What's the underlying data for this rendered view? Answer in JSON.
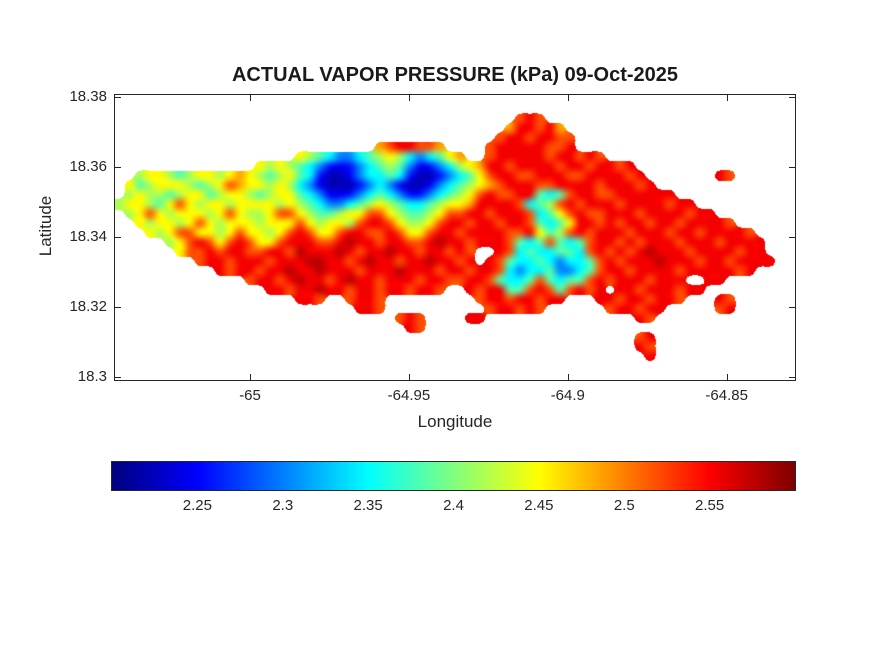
{
  "chart_data": {
    "type": "heatmap",
    "title": "ACTUAL VAPOR PRESSURE (kPa) 09-Oct-2025",
    "xlabel": "Longitude",
    "ylabel": "Latitude",
    "xlim": [
      -65.0425,
      -64.8285
    ],
    "ylim": [
      18.299,
      18.3805
    ],
    "x_tick_values": [
      -65,
      -64.95,
      -64.9,
      -64.85
    ],
    "x_tick_labels": [
      "-65",
      "-64.95",
      "-64.9",
      "-64.85"
    ],
    "y_tick_values": [
      18.3,
      18.32,
      18.34,
      18.36,
      18.38
    ],
    "y_tick_labels": [
      "18.3",
      "18.32",
      "18.34",
      "18.36",
      "18.38"
    ],
    "colormap": "jet",
    "units": "kPa",
    "colorbar": {
      "orientation": "horizontal",
      "min": 2.2,
      "max": 2.6,
      "tick_values": [
        2.25,
        2.3,
        2.35,
        2.4,
        2.45,
        2.5,
        2.55
      ],
      "tick_labels": [
        "2.25",
        "2.3",
        "2.35",
        "2.4",
        "2.45",
        "2.5",
        "2.55"
      ]
    },
    "grid": {
      "note": "Island raster; rows are top (lat 18.3805) to bottom, 68 columns spanning xlim. Char encodes vapor pressure; '.' = no data (sea).",
      "lon_step": 0.003147,
      "lat_step": -0.002717,
      "encoding": {
        "nan": ".",
        "charset": "0123456789abcdefghijklmnopqrstuvwxyz",
        "value_min": 2.2,
        "value_max": 2.6
      },
      "rows": [
        [
          ".................",
          ".................",
          ".................",
          "................."
        ],
        [
          ".................",
          ".................",
          ".................",
          "................."
        ],
        [
          ".................",
          ".................",
          "......svs........",
          "................."
        ],
        [
          ".................",
          ".................",
          ".....pvvsvp......",
          "................."
        ],
        [
          ".................",
          ".................",
          "....svvsvvss.....",
          "................."
        ],
        [
          ".................",
          ".........psvvssp.",
          "...svvvvvssv.....",
          "................."
        ],
        [
          ".................",
          ".mjgd99dgjmjd9dgm",
          "p..svvvvvsvvsvs..",
          "................."
        ],
        [
          "..............mjm",
          "jgd95459dgjg9459d",
          "jmpvvsvvvvsvvsvvs",
          "v................"
        ],
        [
          "..jmmjgjmmjmpmjgj",
          "mgd52249ddgd52259",
          "dgmsvvssvvvssvvvv",
          "sv.......vs......"
        ],
        [
          ".mgjmmmjgjmspmmjm",
          "jd9422259d942249d",
          "gjmpsvvvssvvvvsvv",
          "vsv.............."
        ],
        [
          ".jmjjgjmmgjmmjgjm",
          "mgd94459dgd9559dg",
          "jmsvssvvgdgsvvssv",
          "vvvvv............"
        ],
        [
          "jmmjgmsmjmmjmmmmj",
          "mjgd99dgjmjgddgjm",
          "mpvvvvsdgjsvsvvvs",
          "vvvvsvv.........."
        ],
        [
          ".jmsmjmmmjmsmjjms",
          "smjggjmmssmjggjms",
          "svvsvvvsdgmsvssvv",
          "vsvvvvsvv........"
        ],
        [
          "..mjmmjmsmjmmmjmm",
          "msmjmmjsvvsmjjmsv",
          "vsvvsvvsgdgmvvsvs",
          "vvsvvsvvvvs......"
        ],
        [
          "...mjmssmmjmsmmjm",
          "svsmmsvvssvsmmsvv",
          "svvvvssvmgjsvsvvv",
          "svvvsvvsvvvvs...."
        ],
        [
          ".....jmsvsmsvsmms",
          "vvvssvxvvsvvssvxv",
          "vsvvvsgdgsgdgsvvs",
          "vsvvvsvvvsvvvv..."
        ],
        [
          "......mssvsvvssvv",
          "sxvvvxvsvvxvvsvvs",
          "vs..vsdgddggdsvsv",
          "svxvvvsvvvvsvv..."
        ],
        [
          "........svvsvvvsv",
          "vvxxvvsvxvvsvvxvv",
          "sv.vsgddgd9ddgsvs",
          "vvvxvvvsvvsvvvv.."
        ],
        [
          "..........vsvvsvv",
          "xvvxvvvsvvvxvvvsv",
          "vsvvsd9ddg99dgsvv",
          "svvvvsvvvvvsv...."
        ],
        [
          ".............svvs",
          "vxvvsvxvvsvvvsvvs",
          "svvsgddgsgdggsvsv",
          "vvsvvv..vv......."
        ],
        [
          "...............vv",
          "svvxvvsvvsvvsvvs.",
          ".vsvvggsvsgsvsv.v",
          "vsvvvsvv........."
        ],
        [
          ".................",
          ".vvs..svvs.......",
          "..svvsvvsvv...vvs",
          "vvsvvs...vs......"
        ],
        [
          ".................",
          ".......vvs.......",
          "...svvsvs......sv",
          "vsvv.....sv......"
        ],
        [
          ".................",
          "...........svs...",
          ".vv..............",
          ".vs.............."
        ],
        [
          ".................",
          "............vs...",
          ".................",
          "................."
        ],
        [
          ".................",
          ".................",
          ".................",
          ".sv.............."
        ],
        [
          ".................",
          ".................",
          ".................",
          ".vs.............."
        ],
        [
          ".................",
          ".................",
          ".................",
          "..v.............."
        ],
        [
          ".................",
          ".................",
          ".................",
          "................."
        ],
        [
          ".................",
          ".................",
          ".................",
          "................."
        ]
      ]
    }
  }
}
